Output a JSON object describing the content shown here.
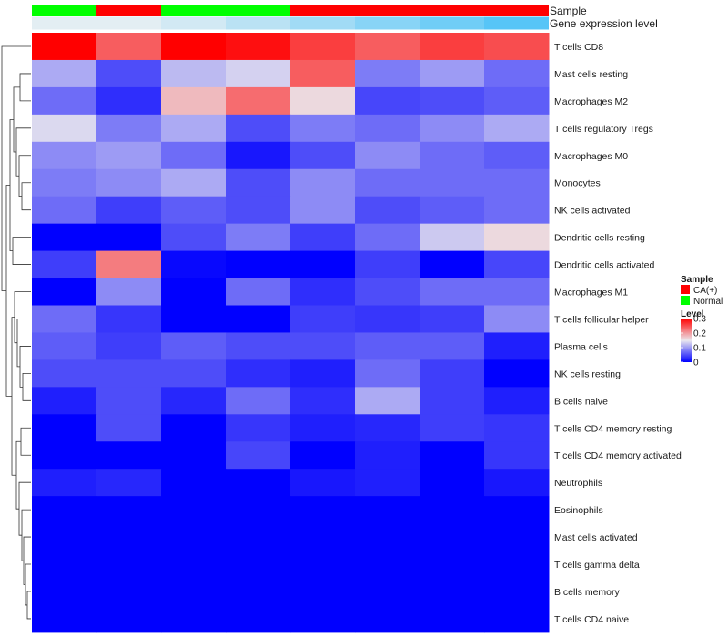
{
  "chart_data": {
    "type": "heatmap",
    "title": "",
    "column_count": 8,
    "annotation_labels": {
      "sample": "Sample",
      "gene_expression": "Gene expression level"
    },
    "sample_annotation": [
      "Normal",
      "CA(+)",
      "Normal",
      "Normal",
      "CA(+)",
      "CA(+)",
      "CA(+)",
      "CA(+)"
    ],
    "gene_expression_annotation": [
      0.1,
      0.1,
      0.2,
      0.35,
      0.5,
      0.65,
      0.8,
      0.95
    ],
    "rows": [
      "T cells CD8",
      "Mast cells resting",
      "Macrophages M2",
      "T cells regulatory  Tregs",
      "Macrophages M0",
      "Monocytes",
      "NK cells activated",
      "Dendritic cells resting",
      "Dendritic cells activated",
      "Macrophages M1",
      "T cells follicular helper",
      "Plasma cells",
      "NK cells resting",
      "B cells naive",
      "T cells CD4 memory resting",
      "T cells CD4 memory activated",
      "Neutrophils",
      "Eosinophils",
      "Mast cells activated",
      "T cells gamma delta",
      "B cells memory",
      "T cells CD4 naive"
    ],
    "values": [
      [
        0.3,
        0.24,
        0.3,
        0.29,
        0.26,
        0.24,
        0.26,
        0.25
      ],
      [
        0.11,
        0.05,
        0.12,
        0.135,
        0.24,
        0.08,
        0.1,
        0.07
      ],
      [
        0.07,
        0.03,
        0.18,
        0.23,
        0.16,
        0.045,
        0.05,
        0.06
      ],
      [
        0.14,
        0.08,
        0.11,
        0.05,
        0.08,
        0.07,
        0.09,
        0.11
      ],
      [
        0.09,
        0.1,
        0.07,
        0.015,
        0.05,
        0.09,
        0.07,
        0.06
      ],
      [
        0.08,
        0.09,
        0.11,
        0.05,
        0.09,
        0.07,
        0.07,
        0.07
      ],
      [
        0.07,
        0.04,
        0.06,
        0.05,
        0.09,
        0.05,
        0.06,
        0.07
      ],
      [
        0.0,
        0.0,
        0.05,
        0.08,
        0.04,
        0.07,
        0.13,
        0.16
      ],
      [
        0.04,
        0.22,
        0.005,
        0.0,
        0.0,
        0.04,
        0.0,
        0.045
      ],
      [
        0.0,
        0.09,
        0.0,
        0.07,
        0.03,
        0.05,
        0.07,
        0.07
      ],
      [
        0.07,
        0.035,
        0.0,
        0.0,
        0.04,
        0.035,
        0.04,
        0.09
      ],
      [
        0.06,
        0.04,
        0.06,
        0.05,
        0.05,
        0.06,
        0.06,
        0.02
      ],
      [
        0.05,
        0.05,
        0.05,
        0.03,
        0.02,
        0.07,
        0.04,
        0.0
      ],
      [
        0.02,
        0.05,
        0.025,
        0.07,
        0.03,
        0.11,
        0.04,
        0.02
      ],
      [
        0.0,
        0.05,
        0.0,
        0.035,
        0.02,
        0.025,
        0.04,
        0.035
      ],
      [
        0.0,
        0.0,
        0.0,
        0.045,
        0.0,
        0.02,
        0.0,
        0.035
      ],
      [
        0.02,
        0.025,
        0.0,
        0.0,
        0.015,
        0.02,
        0.0,
        0.015
      ],
      [
        0.0,
        0.0,
        0.0,
        0.0,
        0.0,
        0.0,
        0.0,
        0.0
      ],
      [
        0.0,
        0.0,
        0.0,
        0.0,
        0.0,
        0.0,
        0.0,
        0.0
      ],
      [
        0.0,
        0.0,
        0.0,
        0.0,
        0.0,
        0.0,
        0.0,
        0.0
      ],
      [
        0.0,
        0.0,
        0.0,
        0.0,
        0.0,
        0.0,
        0.0,
        0.0
      ],
      [
        0.0,
        0.0,
        0.0,
        0.0,
        0.0,
        0.0,
        0.0,
        0.0
      ]
    ],
    "color_scale": {
      "min": 0,
      "mid": 0.15,
      "max": 0.3,
      "low_color": "#0000ff",
      "mid_color": "#ebe8ee",
      "high_color": "#ff0000"
    },
    "legend": {
      "sample_title": "Sample",
      "sample_entries": [
        {
          "label": "CA(+)",
          "color": "#ff0000"
        },
        {
          "label": "Normal",
          "color": "#00ff00"
        }
      ],
      "level_title": "Level",
      "level_ticks": [
        "0.3",
        "0.2",
        "0.1",
        "0"
      ],
      "placement": "right"
    },
    "dendrogram": "rows"
  }
}
